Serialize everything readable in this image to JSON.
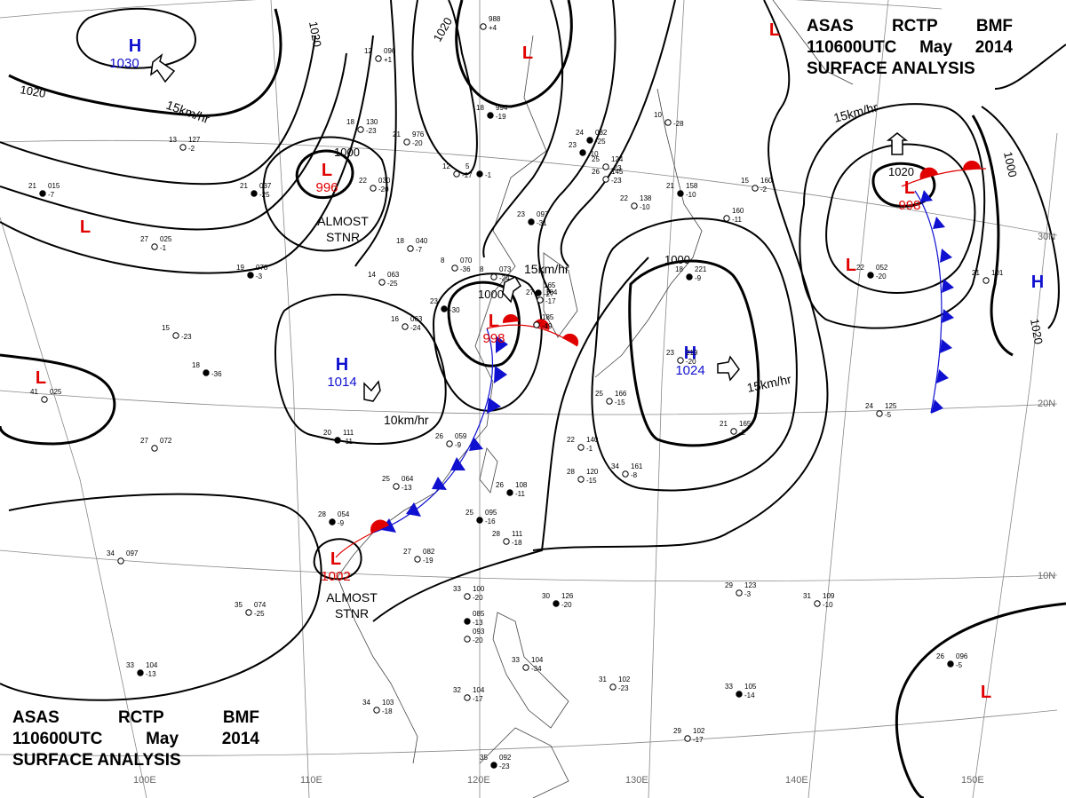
{
  "header": {
    "line1": [
      "ASAS",
      "RCTP",
      "BMF"
    ],
    "line2": [
      "110600UTC",
      "May",
      "2014"
    ],
    "line3": "SURFACE  ANALYSIS"
  },
  "lon_labels": [
    "100E",
    "110E",
    "120E",
    "130E",
    "140E",
    "150E"
  ],
  "lat_labels": [
    "30N",
    "20N",
    "10N"
  ],
  "isobar_labels": [
    "1020",
    "1020",
    "1000",
    "1000",
    "1000",
    "1020",
    "1000",
    "1020",
    "1020"
  ],
  "centers": [
    {
      "type": "H",
      "value": "1030"
    },
    {
      "type": "L",
      "value": ""
    },
    {
      "type": "L",
      "value": "996",
      "note": "ALMOST",
      "note2": "STNR"
    },
    {
      "type": "L",
      "value": ""
    },
    {
      "type": "L",
      "value": ""
    },
    {
      "type": "H",
      "value": "1014"
    },
    {
      "type": "L",
      "value": "998"
    },
    {
      "type": "H",
      "value": "1024"
    },
    {
      "type": "L",
      "value": "998"
    },
    {
      "type": "L",
      "value": ""
    },
    {
      "type": "L",
      "value": ""
    },
    {
      "type": "H",
      "value": ""
    },
    {
      "type": "L",
      "value": "1002",
      "note": "ALMOST",
      "note2": "STNR"
    },
    {
      "type": "L",
      "value": ""
    }
  ],
  "motions": [
    "15km/hr",
    "15km/hr",
    "10km/hr",
    "15km/hr",
    "15km/hr"
  ],
  "colors": {
    "high": "#1010d0",
    "low": "#e00000",
    "cold_front": "#1010d0",
    "warm_front": "#e00000",
    "isobar": "#000000",
    "grid": "#888888"
  },
  "stations": [
    {
      "t": "23",
      "p": "097",
      "d": "-31"
    },
    {
      "t": "14",
      "p": "063",
      "d": "-25"
    },
    {
      "t": "16",
      "p": "063",
      "d": "-24"
    },
    {
      "t": "19",
      "p": "078",
      "d": "-3"
    },
    {
      "t": "18",
      "p": "040",
      "d": "-7"
    },
    {
      "t": "21",
      "p": "976",
      "d": "-20"
    },
    {
      "t": "18",
      "p": "994",
      "d": "-19"
    },
    {
      "t": "12",
      "p": "096",
      "d": "+1"
    },
    {
      "t": "18",
      "p": "130",
      "d": "-23"
    },
    {
      "t": "21",
      "p": "037",
      "d": "-25"
    },
    {
      "t": "22",
      "p": "030",
      "d": "-20"
    },
    {
      "t": "13",
      "p": "127",
      "d": "-2"
    },
    {
      "t": "21",
      "p": "015",
      "d": "-7"
    },
    {
      "t": "27",
      "p": "025",
      "d": "-1"
    },
    {
      "t": "41",
      "p": "025",
      "d": ""
    },
    {
      "t": "18",
      "p": "",
      "d": "-36"
    },
    {
      "t": "15",
      "p": "",
      "d": "-23"
    },
    {
      "t": "27",
      "p": "072",
      "d": ""
    },
    {
      "t": "20",
      "p": "111",
      "d": "-11"
    },
    {
      "t": "25",
      "p": "064",
      "d": "-13"
    },
    {
      "t": "26",
      "p": "059",
      "d": "-9"
    },
    {
      "t": "28",
      "p": "054",
      "d": "-9"
    },
    {
      "t": "34",
      "p": "097",
      "d": ""
    },
    {
      "t": "35",
      "p": "074",
      "d": "-25"
    },
    {
      "t": "33",
      "p": "104",
      "d": "-13"
    },
    {
      "t": "34",
      "p": "103",
      "d": "-18"
    },
    {
      "t": "32",
      "p": "104",
      "d": "-17"
    },
    {
      "t": "35",
      "p": "092",
      "d": "-23"
    },
    {
      "t": "27",
      "p": "082",
      "d": "-19"
    },
    {
      "t": "33",
      "p": "100",
      "d": "-20"
    },
    {
      "t": "",
      "p": "085",
      "d": "-13"
    },
    {
      "t": "",
      "p": "093",
      "d": "-20"
    },
    {
      "t": "33",
      "p": "104",
      "d": "-34"
    },
    {
      "t": "30",
      "p": "126",
      "d": "-20"
    },
    {
      "t": "31",
      "p": "102",
      "d": "-23"
    },
    {
      "t": "29",
      "p": "102",
      "d": "-17"
    },
    {
      "t": "33",
      "p": "105",
      "d": "-14"
    },
    {
      "t": "29",
      "p": "123",
      "d": "-3"
    },
    {
      "t": "31",
      "p": "109",
      "d": "-10"
    },
    {
      "t": "26",
      "p": "096",
      "d": "-5"
    },
    {
      "t": "24",
      "p": "125",
      "d": "-5"
    },
    {
      "t": "28",
      "p": "120",
      "d": "-15"
    },
    {
      "t": "26",
      "p": "108",
      "d": "-11"
    },
    {
      "t": "22",
      "p": "140",
      "d": "-1"
    },
    {
      "t": "34",
      "p": "161",
      "d": "-8"
    },
    {
      "t": "25",
      "p": "095",
      "d": "-16"
    },
    {
      "t": "28",
      "p": "111",
      "d": "-18"
    },
    {
      "t": "25",
      "p": "166",
      "d": "-15"
    },
    {
      "t": "18",
      "p": "221",
      "d": "-9"
    },
    {
      "t": "23",
      "p": "219",
      "d": "-20"
    },
    {
      "t": "21",
      "p": "165",
      "d": "-2"
    },
    {
      "t": "23",
      "p": "",
      "d": "-10"
    },
    {
      "t": "26",
      "p": "145",
      "d": "-23"
    },
    {
      "t": "25",
      "p": "124",
      "d": "-23"
    },
    {
      "t": "24",
      "p": "082",
      "d": "-25"
    },
    {
      "t": "10",
      "p": "",
      "d": "-28"
    },
    {
      "t": "22",
      "p": "138",
      "d": "-10"
    },
    {
      "t": "21",
      "p": "158",
      "d": "-10"
    },
    {
      "t": "",
      "p": "160",
      "d": "-11"
    },
    {
      "t": "15",
      "p": "160",
      "d": "-2"
    },
    {
      "t": "22",
      "p": "052",
      "d": "-20"
    },
    {
      "t": "21",
      "p": "101",
      "d": ""
    },
    {
      "t": "8",
      "p": "070",
      "d": "-36"
    },
    {
      "t": "23",
      "p": "",
      "d": "-30"
    },
    {
      "t": "8",
      "p": "073",
      "d": "-24"
    },
    {
      "t": "12",
      "p": "",
      "d": "-17"
    },
    {
      "t": "5",
      "p": "",
      "d": "-1"
    },
    {
      "t": "27",
      "p": "104",
      "d": "-17"
    },
    {
      "t": "",
      "p": "988",
      "d": "+4"
    },
    {
      "t": "",
      "p": "165",
      "d": "-27"
    },
    {
      "t": "",
      "p": "185",
      "d": "-49"
    }
  ]
}
